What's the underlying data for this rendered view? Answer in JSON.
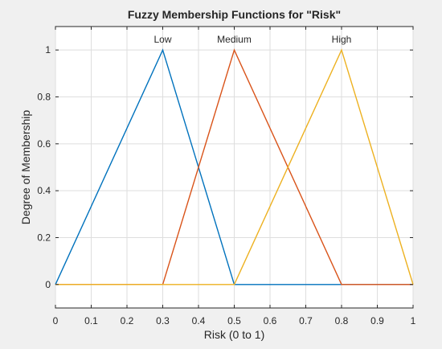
{
  "chart_data": {
    "type": "line",
    "title": "Fuzzy Membership Functions for \"Risk\"",
    "xlabel": "Risk (0 to 1)",
    "ylabel": "Degree of Membership",
    "xlim": [
      0,
      1
    ],
    "ylim": [
      -0.1,
      1.1
    ],
    "x_ticks": [
      0,
      0.1,
      0.2,
      0.3,
      0.4,
      0.5,
      0.6,
      0.7,
      0.8,
      0.9,
      1
    ],
    "x_tick_labels": [
      "0",
      "0.1",
      "0.2",
      "0.3",
      "0.4",
      "0.5",
      "0.6",
      "0.7",
      "0.8",
      "0.9",
      "1"
    ],
    "y_ticks": [
      0,
      0.2,
      0.4,
      0.6,
      0.8,
      1
    ],
    "y_tick_labels": [
      "0",
      "0.2",
      "0.4",
      "0.6",
      "0.8",
      "1"
    ],
    "grid": true,
    "series": [
      {
        "name": "Low",
        "color": "#0072bd",
        "x": [
          0,
          0.3,
          0.5,
          1
        ],
        "y": [
          0,
          1,
          0,
          0
        ],
        "label_x": 0.3
      },
      {
        "name": "Medium",
        "color": "#d95319",
        "x": [
          0,
          0.3,
          0.5,
          0.8,
          1
        ],
        "y": [
          0,
          0,
          1,
          0,
          0
        ],
        "label_x": 0.5
      },
      {
        "name": "High",
        "color": "#edb120",
        "x": [
          0,
          0.5,
          0.8,
          1
        ],
        "y": [
          0,
          0,
          1,
          0
        ],
        "label_x": 0.8
      }
    ]
  }
}
